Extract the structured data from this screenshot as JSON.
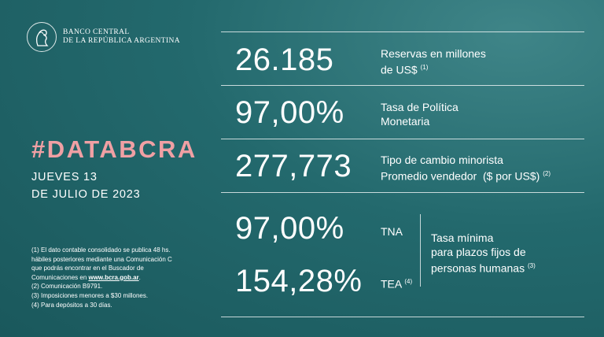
{
  "brand": {
    "line1": "BANCO CENTRAL",
    "line2": "DE LA REPÚBLICA ARGENTINA"
  },
  "hashtag": "#DATABCRA",
  "date": {
    "line1": "JUEVES 13",
    "line2": "DE JULIO DE 2023"
  },
  "colors": {
    "accent": "#f0a0a4",
    "background": "#23696d",
    "text": "#ffffff"
  },
  "metrics": [
    {
      "value": "26.185",
      "label_line1": "Reservas en millones",
      "label_line2": "de US$",
      "note": "(1)"
    },
    {
      "value": "97,00%",
      "label_line1": "Tasa de Política",
      "label_line2": "Monetaria"
    },
    {
      "value": "277,773",
      "label_line1": "Tipo de cambio minorista",
      "label_line2": "Promedio vendedor  ($ por US$)",
      "note": "(2)"
    }
  ],
  "fixed_term": {
    "tna_value": "97,00%",
    "tna_label": "TNA",
    "tea_value": "154,28%",
    "tea_label": "TEA",
    "tea_note": "(4)",
    "description_line1": "Tasa mínima",
    "description_line2": "para plazos fijos de",
    "description_line3": "personas humanas",
    "description_note": "(3)"
  },
  "footnotes": {
    "n1_line1": "(1) El dato contable consolidado se publica 48 hs.",
    "n1_line2": "hábiles posteriores mediante una Comunicación C",
    "n1_line3": "que podrás encontrar en el Buscador de",
    "n1_line4_prefix": "Comunicaciones en ",
    "n1_link": "www.bcra.gob.ar",
    "n1_line4_suffix": ".",
    "n2": "(2) Comunicación B9791.",
    "n3": "(3) Imposiciones menores a $30 millones.",
    "n4": "(4) Para depósitos a 30 días."
  }
}
